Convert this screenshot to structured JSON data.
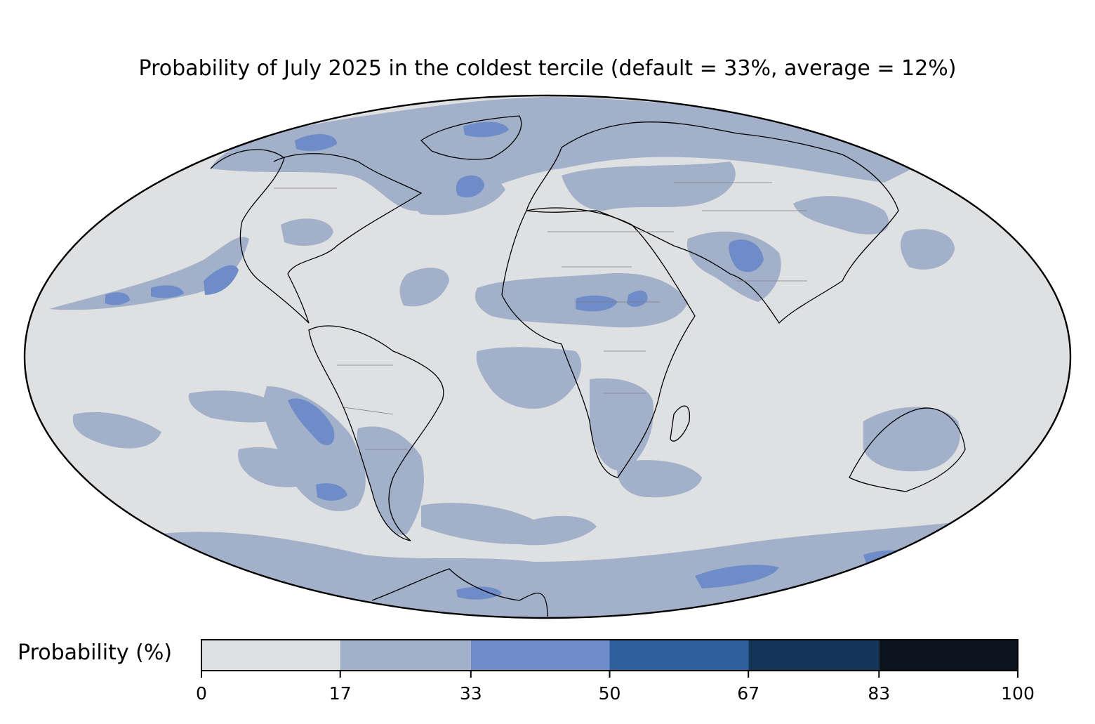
{
  "title": "Probability of July 2025 in the coldest tercile (default = 33%, average = 12%)",
  "colors": {
    "ocean_land_base": "#dfe0e2",
    "coast": "#000000",
    "borders": "#808080"
  },
  "legend": {
    "label": "Probability (%)",
    "bins": [
      {
        "from": 0,
        "to": 17,
        "color": "#dfe0e2"
      },
      {
        "from": 17,
        "to": 33,
        "color": "#a2b0ca"
      },
      {
        "from": 33,
        "to": 50,
        "color": "#6e8cc8"
      },
      {
        "from": 50,
        "to": 67,
        "color": "#2e5f9c"
      },
      {
        "from": 67,
        "to": 83,
        "color": "#14355a"
      },
      {
        "from": 83,
        "to": 100,
        "color": "#0b141d"
      }
    ],
    "ticks": [
      "0",
      "17",
      "33",
      "50",
      "67",
      "83",
      "100"
    ]
  },
  "regions": [
    {
      "name": "north-atlantic-band",
      "bin": 1
    },
    {
      "name": "labrador-sea-core",
      "bin": 2
    },
    {
      "name": "east-pacific-band",
      "bin": 1
    },
    {
      "name": "east-pacific-core",
      "bin": 2
    },
    {
      "name": "sahel-band",
      "bin": 1
    },
    {
      "name": "sahel-core",
      "bin": 2
    },
    {
      "name": "south-asia-band",
      "bin": 1
    },
    {
      "name": "pakistan-core",
      "bin": 2
    },
    {
      "name": "southern-africa",
      "bin": 1
    },
    {
      "name": "australia",
      "bin": 1
    },
    {
      "name": "south-america-west",
      "bin": 1
    },
    {
      "name": "southern-ocean",
      "bin": 1
    },
    {
      "name": "southern-ocean-core",
      "bin": 2
    }
  ]
}
